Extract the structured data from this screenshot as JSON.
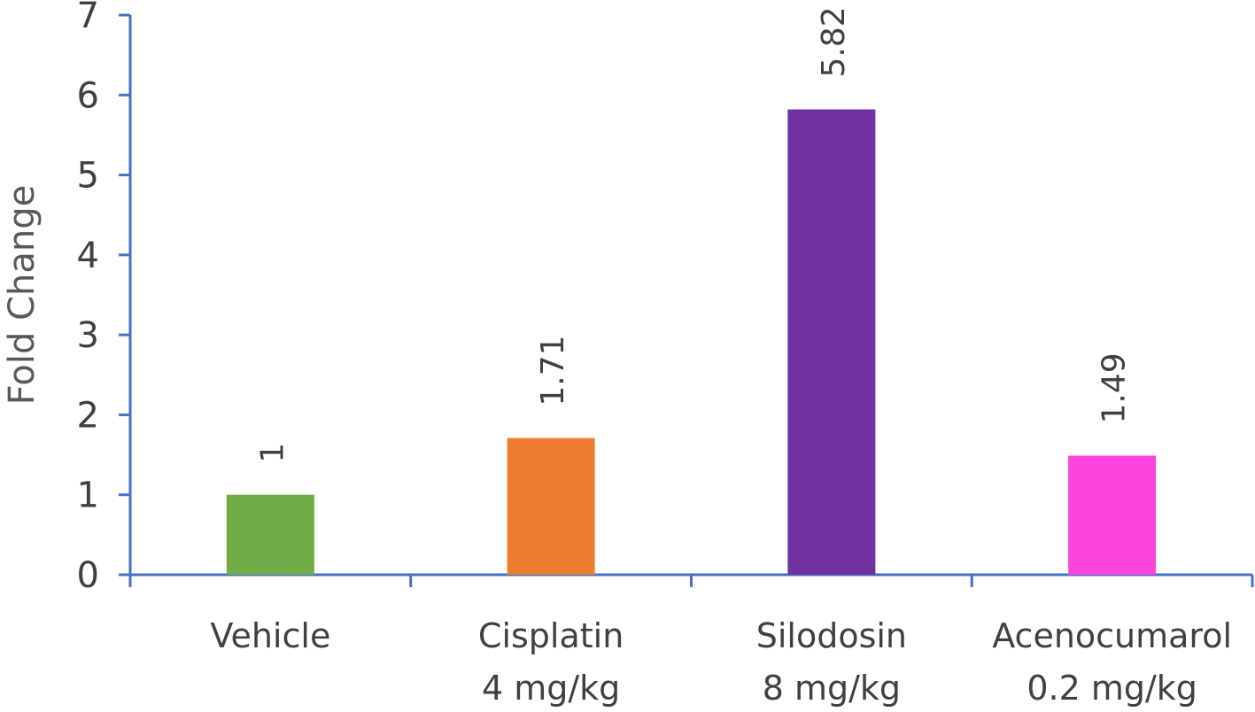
{
  "chart_data": {
    "type": "bar",
    "title": "",
    "xlabel": "",
    "ylabel": "Fold Change",
    "ylim": [
      0,
      7
    ],
    "yticks": [
      "0",
      "1",
      "2",
      "3",
      "4",
      "5",
      "6",
      "7"
    ],
    "categories": [
      [
        "Vehicle"
      ],
      [
        "Cisplatin",
        "4 mg/kg"
      ],
      [
        "Silodosin",
        "8 mg/kg"
      ],
      [
        "Acenocumarol",
        "0.2 mg/kg"
      ]
    ],
    "values": [
      1,
      1.71,
      5.82,
      1.49
    ],
    "data_labels": [
      "1",
      "1.71",
      "5.82",
      "1.49"
    ],
    "colors": [
      "#70ad47",
      "#ed7d31",
      "#7030a0",
      "#ff44dd"
    ],
    "axis_color": "#4472c4",
    "grid": false,
    "legend": "none"
  }
}
